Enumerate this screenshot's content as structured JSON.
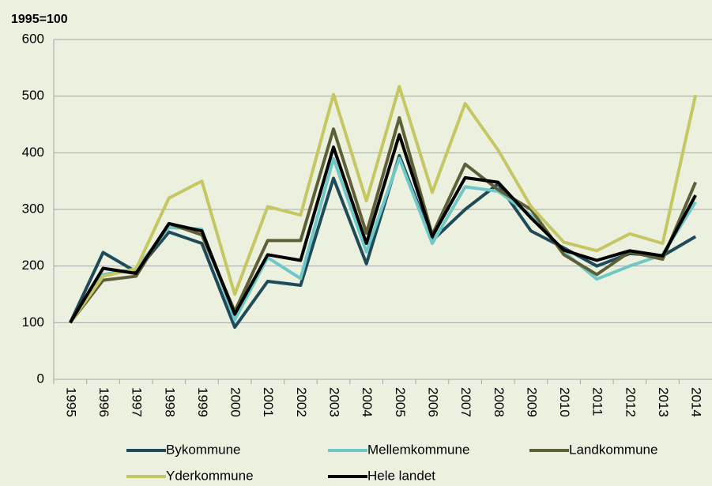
{
  "chart_data": {
    "type": "line",
    "subtitle": "1995=100",
    "categories": [
      "1995",
      "1996",
      "1997",
      "1998",
      "1999",
      "2000",
      "2001",
      "2002",
      "2003",
      "2004",
      "2005",
      "2006",
      "2007",
      "2008",
      "2009",
      "2010",
      "2011",
      "2012",
      "2013",
      "2014"
    ],
    "series": [
      {
        "name": "Bykommune",
        "color": "#1f4a5a",
        "values": [
          100,
          224,
          190,
          260,
          240,
          92,
          173,
          166,
          355,
          204,
          395,
          245,
          300,
          345,
          262,
          232,
          200,
          222,
          218,
          252
        ]
      },
      {
        "name": "Mellemkommune",
        "color": "#6ec8c8",
        "values": [
          100,
          185,
          195,
          268,
          265,
          105,
          215,
          178,
          390,
          225,
          390,
          240,
          340,
          332,
          290,
          225,
          177,
          200,
          220,
          313
        ]
      },
      {
        "name": "Landkommune",
        "color": "#5f5f37",
        "values": [
          100,
          175,
          182,
          275,
          255,
          120,
          245,
          245,
          442,
          258,
          462,
          255,
          380,
          335,
          300,
          220,
          185,
          225,
          212,
          348
        ]
      },
      {
        "name": "Yderkommune",
        "color": "#c6c663",
        "values": [
          100,
          182,
          195,
          320,
          350,
          150,
          305,
          290,
          503,
          315,
          517,
          330,
          487,
          405,
          305,
          242,
          227,
          257,
          240,
          502
        ]
      },
      {
        "name": "Hele landet",
        "color": "#000000",
        "values": [
          100,
          196,
          187,
          275,
          262,
          115,
          220,
          210,
          410,
          240,
          432,
          252,
          356,
          348,
          285,
          228,
          210,
          227,
          218,
          325
        ]
      }
    ],
    "ylim": [
      0,
      600
    ],
    "yticks": [
      0,
      100,
      200,
      300,
      400,
      500,
      600
    ],
    "grid": true
  }
}
